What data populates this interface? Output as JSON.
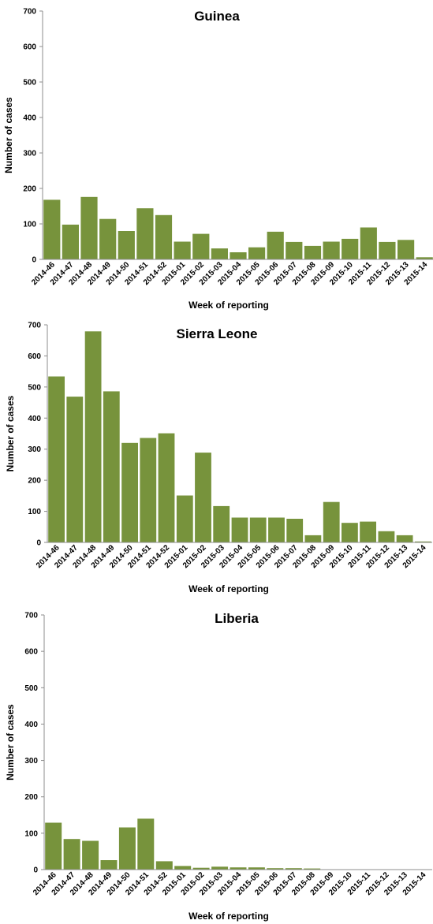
{
  "colors": {
    "bar": "#77933c",
    "axis": "#8c8c8c"
  },
  "chart_data": [
    {
      "type": "bar",
      "title": "Guinea",
      "xlabel": "Week of reporting",
      "ylabel": "Number of cases",
      "ylim": [
        0,
        700
      ],
      "yticks": [
        0,
        100,
        200,
        300,
        400,
        500,
        600,
        700
      ],
      "grid": false,
      "categories": [
        "2014-46",
        "2014-47",
        "2014-48",
        "2014-49",
        "2014-50",
        "2014-51",
        "2014-52",
        "2015-01",
        "2015-02",
        "2015-03",
        "2015-04",
        "2015-05",
        "2015-06",
        "2015-07",
        "2015-08",
        "2015-09",
        "2015-10",
        "2015-11",
        "2015-12",
        "2015-13",
        "2015-14"
      ],
      "values": [
        168,
        98,
        176,
        114,
        80,
        144,
        125,
        50,
        72,
        31,
        20,
        34,
        78,
        49,
        38,
        50,
        58,
        90,
        49,
        55,
        6
      ]
    },
    {
      "type": "bar",
      "title": "Sierra Leone",
      "xlabel": "Week of reporting",
      "ylabel": "Number of cases",
      "ylim": [
        0,
        700
      ],
      "yticks": [
        0,
        100,
        200,
        300,
        400,
        500,
        600,
        700
      ],
      "grid": false,
      "categories": [
        "2014-46",
        "2014-47",
        "2014-48",
        "2014-49",
        "2014-50",
        "2014-51",
        "2014-52",
        "2015-01",
        "2015-02",
        "2015-03",
        "2015-04",
        "2015-05",
        "2015-06",
        "2015-07",
        "2015-08",
        "2015-09",
        "2015-10",
        "2015-11",
        "2015-12",
        "2015-13",
        "2015-14"
      ],
      "values": [
        534,
        469,
        679,
        486,
        320,
        336,
        351,
        151,
        289,
        117,
        80,
        80,
        80,
        76,
        23,
        130,
        63,
        67,
        36,
        23,
        3
      ]
    },
    {
      "type": "bar",
      "title": "Liberia",
      "xlabel": "Week of reporting",
      "ylabel": "Number of cases",
      "ylim": [
        0,
        700
      ],
      "yticks": [
        0,
        100,
        200,
        300,
        400,
        500,
        600,
        700
      ],
      "grid": false,
      "categories": [
        "2014-46",
        "2014-47",
        "2014-48",
        "2014-49",
        "2014-50",
        "2014-51",
        "2014-52",
        "2015-01",
        "2015-02",
        "2015-03",
        "2015-04",
        "2015-05",
        "2015-06",
        "2015-07",
        "2015-08",
        "2015-09",
        "2015-10",
        "2015-11",
        "2015-12",
        "2015-13",
        "2015-14"
      ],
      "values": [
        129,
        84,
        79,
        26,
        116,
        140,
        23,
        10,
        5,
        8,
        6,
        6,
        4,
        4,
        3,
        0,
        0,
        0,
        1,
        0,
        0
      ]
    }
  ]
}
